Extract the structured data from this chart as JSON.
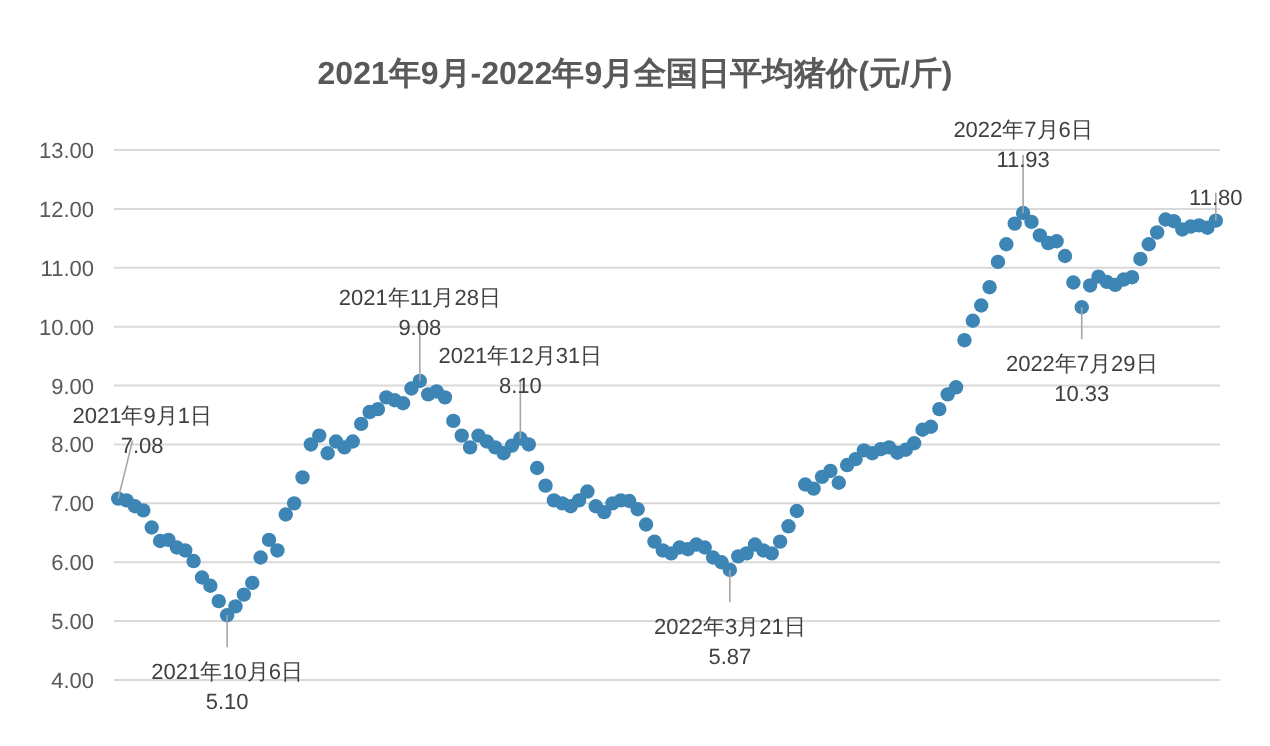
{
  "chart_data": {
    "type": "scatter",
    "title": "2021年9月-2022年9月全国日平均猪价(元/斤)",
    "categories": [
      null,
      null,
      null,
      null,
      null,
      null,
      null,
      null,
      null,
      null,
      null,
      null,
      null,
      null,
      null,
      null,
      null,
      null,
      null,
      null,
      null,
      null,
      null,
      null,
      null,
      null,
      null,
      null,
      null,
      null,
      null,
      null,
      null,
      null,
      null,
      null,
      null,
      null,
      null,
      null,
      null,
      null,
      null,
      null,
      null,
      null,
      null,
      null,
      null,
      null,
      null,
      null,
      null,
      null,
      null,
      null,
      null,
      null,
      null,
      null,
      null,
      null,
      null,
      null,
      null,
      null,
      null,
      null,
      null,
      null,
      null,
      null,
      null,
      null,
      null,
      null,
      null,
      null,
      null,
      null,
      null,
      null,
      null,
      null,
      null,
      null,
      null,
      null,
      null,
      null,
      null,
      null,
      null,
      null,
      null,
      null,
      null,
      null,
      null,
      null,
      null,
      null,
      null,
      null,
      null,
      null,
      null,
      null,
      null,
      null,
      null,
      null,
      null,
      null,
      null,
      null,
      null,
      null,
      null,
      null,
      null,
      null,
      null,
      null,
      null,
      null,
      null,
      null,
      null,
      null,
      null,
      null
    ],
    "series": [
      {
        "color": "#3d85b4",
        "values": [
          7.08,
          7.05,
          6.95,
          6.88,
          6.59,
          6.36,
          6.38,
          6.25,
          6.2,
          6.02,
          5.74,
          5.6,
          5.34,
          5.1,
          5.25,
          5.45,
          5.65,
          6.08,
          6.38,
          6.2,
          6.81,
          7.0,
          7.44,
          8.0,
          8.15,
          7.85,
          8.05,
          7.95,
          8.05,
          8.35,
          8.55,
          8.6,
          8.8,
          8.75,
          8.7,
          8.95,
          9.08,
          8.85,
          8.9,
          8.8,
          8.4,
          8.15,
          7.95,
          8.15,
          8.05,
          7.95,
          7.85,
          7.98,
          8.1,
          8.0,
          7.6,
          7.3,
          7.05,
          7.0,
          6.95,
          7.05,
          7.2,
          6.95,
          6.85,
          7.0,
          7.05,
          7.04,
          6.9,
          6.64,
          6.35,
          6.2,
          6.15,
          6.25,
          6.22,
          6.3,
          6.25,
          6.08,
          6.0,
          5.87,
          6.1,
          6.15,
          6.3,
          6.2,
          6.15,
          6.35,
          6.61,
          6.87,
          7.32,
          7.25,
          7.45,
          7.55,
          7.35,
          7.65,
          7.75,
          7.9,
          7.85,
          7.92,
          7.95,
          7.86,
          7.91,
          8.02,
          8.25,
          8.3,
          8.6,
          8.85,
          8.97,
          9.77,
          10.1,
          10.36,
          10.67,
          11.1,
          11.4,
          11.75,
          11.93,
          11.78,
          11.55,
          11.42,
          11.45,
          11.2,
          10.75,
          10.33,
          10.7,
          10.85,
          10.76,
          10.71,
          10.8,
          10.84,
          11.15,
          11.4,
          11.6,
          11.82,
          11.79,
          11.65,
          11.7,
          11.72,
          11.68,
          11.8
        ]
      }
    ],
    "ylim": [
      4,
      13
    ],
    "yticks": [
      {
        "value": 4,
        "label": "4.00"
      },
      {
        "value": 5,
        "label": "5.00"
      },
      {
        "value": 6,
        "label": "6.00"
      },
      {
        "value": 7,
        "label": "7.00"
      },
      {
        "value": 8,
        "label": "8.00"
      },
      {
        "value": 9,
        "label": "9.00"
      },
      {
        "value": 10,
        "label": "10.00"
      },
      {
        "value": 11,
        "label": "11.00"
      },
      {
        "value": 12,
        "label": "12.00"
      },
      {
        "value": 13,
        "label": "13.00"
      }
    ],
    "tick_labels": "y",
    "grid": "y",
    "marker": "circle",
    "annotations": [
      {
        "text": "2021年9月1日\n7.08",
        "y": 7.08
      },
      {
        "text": "2021年10月6日\n5.10",
        "y": 5.1
      },
      {
        "text": "2021年11月28日\n9.08",
        "y": 9.08
      },
      {
        "text": "2021年12月31日\n8.10",
        "y": 8.1
      },
      {
        "text": "2022年3月21日\n5.87",
        "y": 5.87
      },
      {
        "text": "2022年7月6日\n11.93",
        "y": 11.93
      },
      {
        "text": "2022年7月29日\n10.33",
        "y": 10.33
      },
      {
        "text": "11.80",
        "y": 11.8
      }
    ]
  }
}
